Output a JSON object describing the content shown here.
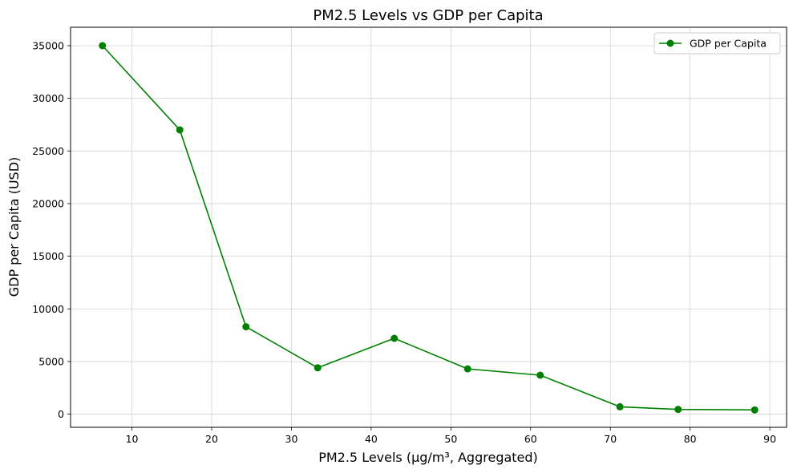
{
  "colors": {
    "series": "#008000",
    "grid": "#d3d3d3",
    "frame": "#000000"
  },
  "chart_data": {
    "type": "line",
    "title": "PM2.5 Levels vs GDP per Capita",
    "xlabel": "PM2.5 Levels (µg/m³, Aggregated)",
    "ylabel": "GDP per Capita (USD)",
    "xlim": [
      2.3,
      92.1
    ],
    "ylim": [
      -1250,
      36750
    ],
    "xticks": [
      10,
      20,
      30,
      40,
      50,
      60,
      70,
      80,
      90
    ],
    "yticks": [
      0,
      5000,
      10000,
      15000,
      20000,
      25000,
      30000,
      35000
    ],
    "grid": true,
    "legend_position": "top-right",
    "series": [
      {
        "name": "GDP per Capita",
        "marker": "circle",
        "x": [
          6.3,
          16.0,
          24.3,
          33.3,
          42.9,
          52.1,
          61.2,
          71.2,
          78.5,
          88.1
        ],
        "y": [
          35000,
          27000,
          8300,
          4400,
          7200,
          4300,
          3700,
          700,
          450,
          400
        ]
      }
    ]
  }
}
